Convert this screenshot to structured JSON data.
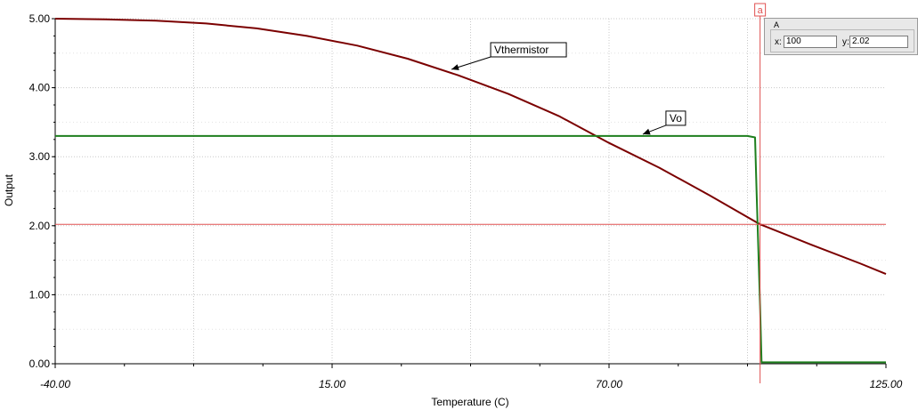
{
  "chart_data": {
    "type": "line",
    "title": "",
    "xlabel": "Temperature (C)",
    "ylabel": "Output",
    "xlim": [
      -40,
      125
    ],
    "ylim": [
      0,
      5
    ],
    "x_ticks": [
      -40,
      15,
      70,
      125
    ],
    "x_tick_labels": [
      "-40.00",
      "15.00",
      "70.00",
      "125.00"
    ],
    "y_ticks": [
      0,
      1,
      2,
      3,
      4,
      5
    ],
    "y_tick_labels": [
      "0.00",
      "1.00",
      "2.00",
      "3.00",
      "4.00",
      "5.00"
    ],
    "grid": true,
    "series": [
      {
        "name": "Vthermistor",
        "color": "#7b0000",
        "x": [
          -40,
          -30,
          -20,
          -10,
          0,
          10,
          20,
          30,
          40,
          50,
          60,
          70,
          80,
          90,
          100,
          110,
          120,
          125
        ],
        "y": [
          5.0,
          4.99,
          4.97,
          4.93,
          4.86,
          4.75,
          4.61,
          4.42,
          4.18,
          3.91,
          3.59,
          3.2,
          2.84,
          2.44,
          2.02,
          1.73,
          1.45,
          1.3
        ]
      },
      {
        "name": "Vo",
        "color": "#1e7f1e",
        "x": [
          -40,
          97.5,
          99.0,
          99.3,
          100,
          100.3,
          125
        ],
        "y": [
          3.3,
          3.3,
          3.28,
          2.5,
          0.85,
          0.02,
          0.02
        ]
      }
    ],
    "annotations": [
      {
        "text": "Vthermistor",
        "x": 38,
        "y": 4.24
      },
      {
        "text": "Vo",
        "x": 76,
        "y": 3.3
      }
    ],
    "cursor": {
      "label": "a",
      "x": 100,
      "y": 2.02,
      "color": "#e05050"
    }
  },
  "cursor_panel": {
    "title": "A",
    "x_label": "x:",
    "x_value": "100",
    "y_label": "y:",
    "y_value": "2.02"
  }
}
